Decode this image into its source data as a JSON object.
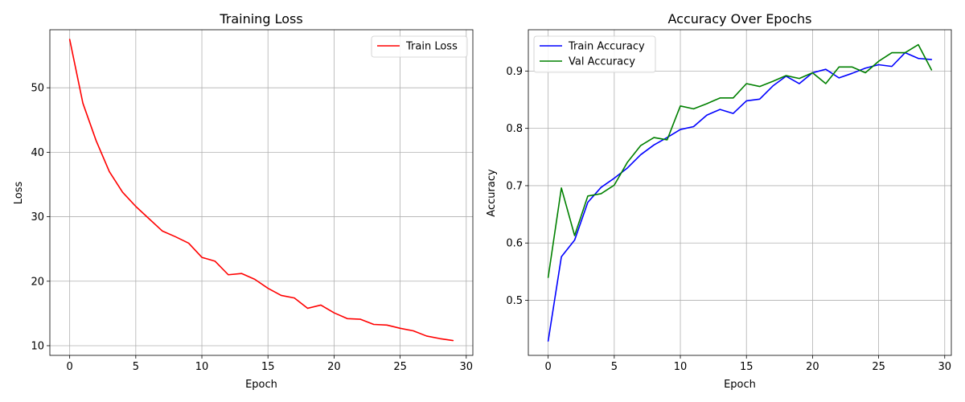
{
  "chart_data": [
    {
      "type": "line",
      "title": "Training Loss",
      "xlabel": "Epoch",
      "ylabel": "Loss",
      "xlim": [
        -1.5,
        30.5
      ],
      "ylim": [
        8.5,
        59.0
      ],
      "xticks": [
        0,
        5,
        10,
        15,
        20,
        25,
        30
      ],
      "yticks": [
        10,
        20,
        30,
        40,
        50
      ],
      "grid": true,
      "legend_position": "upper-right",
      "x": [
        0,
        1,
        2,
        3,
        4,
        5,
        6,
        7,
        8,
        9,
        10,
        11,
        12,
        13,
        14,
        15,
        16,
        17,
        18,
        19,
        20,
        21,
        22,
        23,
        24,
        25,
        26,
        27,
        28,
        29
      ],
      "series": [
        {
          "name": "Train Loss",
          "color": "#ff0000",
          "values": [
            57.5,
            47.6,
            41.8,
            37.0,
            33.8,
            31.6,
            29.7,
            27.8,
            26.9,
            25.9,
            23.7,
            23.1,
            21.0,
            21.2,
            20.3,
            18.9,
            17.8,
            17.4,
            15.8,
            16.3,
            15.1,
            14.2,
            14.1,
            13.3,
            13.2,
            12.7,
            12.3,
            11.5,
            11.1,
            10.8
          ]
        }
      ]
    },
    {
      "type": "line",
      "title": "Accuracy Over Epochs",
      "xlabel": "Epoch",
      "ylabel": "Accuracy",
      "xlim": [
        -1.5,
        30.5
      ],
      "ylim": [
        0.404,
        0.972
      ],
      "xticks": [
        0,
        5,
        10,
        15,
        20,
        25,
        30
      ],
      "yticks": [
        0.5,
        0.6,
        0.7,
        0.8,
        0.9
      ],
      "grid": true,
      "legend_position": "upper-left",
      "x": [
        0,
        1,
        2,
        3,
        4,
        5,
        6,
        7,
        8,
        9,
        10,
        11,
        12,
        13,
        14,
        15,
        16,
        17,
        18,
        19,
        20,
        21,
        22,
        23,
        24,
        25,
        26,
        27,
        28,
        29
      ],
      "series": [
        {
          "name": "Train Accuracy",
          "color": "#0000ff",
          "values": [
            0.429,
            0.576,
            0.605,
            0.671,
            0.697,
            0.713,
            0.731,
            0.754,
            0.771,
            0.784,
            0.798,
            0.803,
            0.823,
            0.833,
            0.826,
            0.848,
            0.851,
            0.874,
            0.891,
            0.878,
            0.897,
            0.903,
            0.888,
            0.896,
            0.905,
            0.911,
            0.908,
            0.932,
            0.922,
            0.92
          ]
        },
        {
          "name": "Val Accuracy",
          "color": "#008000",
          "values": [
            0.54,
            0.696,
            0.613,
            0.682,
            0.686,
            0.701,
            0.741,
            0.77,
            0.784,
            0.78,
            0.839,
            0.834,
            0.843,
            0.853,
            0.853,
            0.878,
            0.873,
            0.882,
            0.892,
            0.887,
            0.897,
            0.878,
            0.907,
            0.907,
            0.897,
            0.917,
            0.932,
            0.932,
            0.946,
            0.902
          ]
        }
      ]
    }
  ]
}
